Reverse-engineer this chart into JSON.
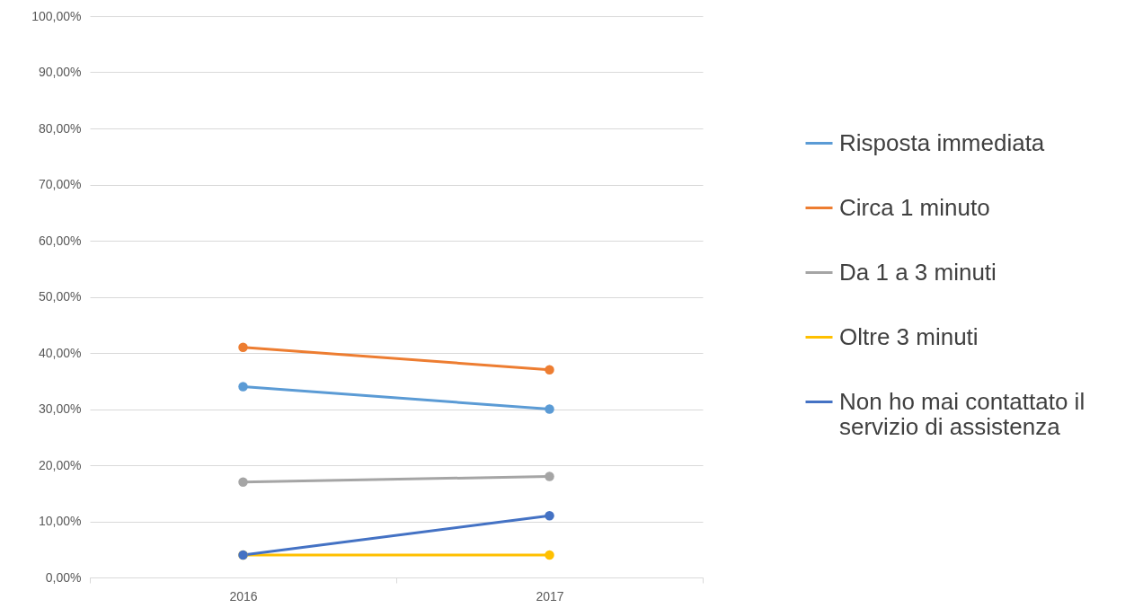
{
  "chart_data": {
    "type": "line",
    "categories": [
      "2016",
      "2017"
    ],
    "series": [
      {
        "name": "Risposta immediata",
        "color": "#5b9bd5",
        "values": [
          34,
          30
        ]
      },
      {
        "name": "Circa 1 minuto",
        "color": "#ed7d31",
        "values": [
          41,
          37
        ]
      },
      {
        "name": "Da 1 a 3 minuti",
        "color": "#a5a5a5",
        "values": [
          17,
          18
        ]
      },
      {
        "name": "Oltre 3 minuti",
        "color": "#ffc000",
        "values": [
          4,
          4
        ]
      },
      {
        "name": "Non ho mai contattato il servizio di assistenza",
        "color": "#4472c4",
        "values": [
          4,
          11
        ]
      }
    ],
    "ylim": [
      0,
      100
    ],
    "yticks": [
      {
        "value": 0,
        "label": "0,00%"
      },
      {
        "value": 10,
        "label": "10,00%"
      },
      {
        "value": 20,
        "label": "20,00%"
      },
      {
        "value": 30,
        "label": "30,00%"
      },
      {
        "value": 40,
        "label": "40,00%"
      },
      {
        "value": 50,
        "label": "50,00%"
      },
      {
        "value": 60,
        "label": "60,00%"
      },
      {
        "value": 70,
        "label": "70,00%"
      },
      {
        "value": 80,
        "label": "80,00%"
      },
      {
        "value": 90,
        "label": "90,00%"
      },
      {
        "value": 100,
        "label": "100,00%"
      }
    ],
    "grid": "y",
    "legend": "right",
    "marker": "circle",
    "line_style": "solid"
  }
}
